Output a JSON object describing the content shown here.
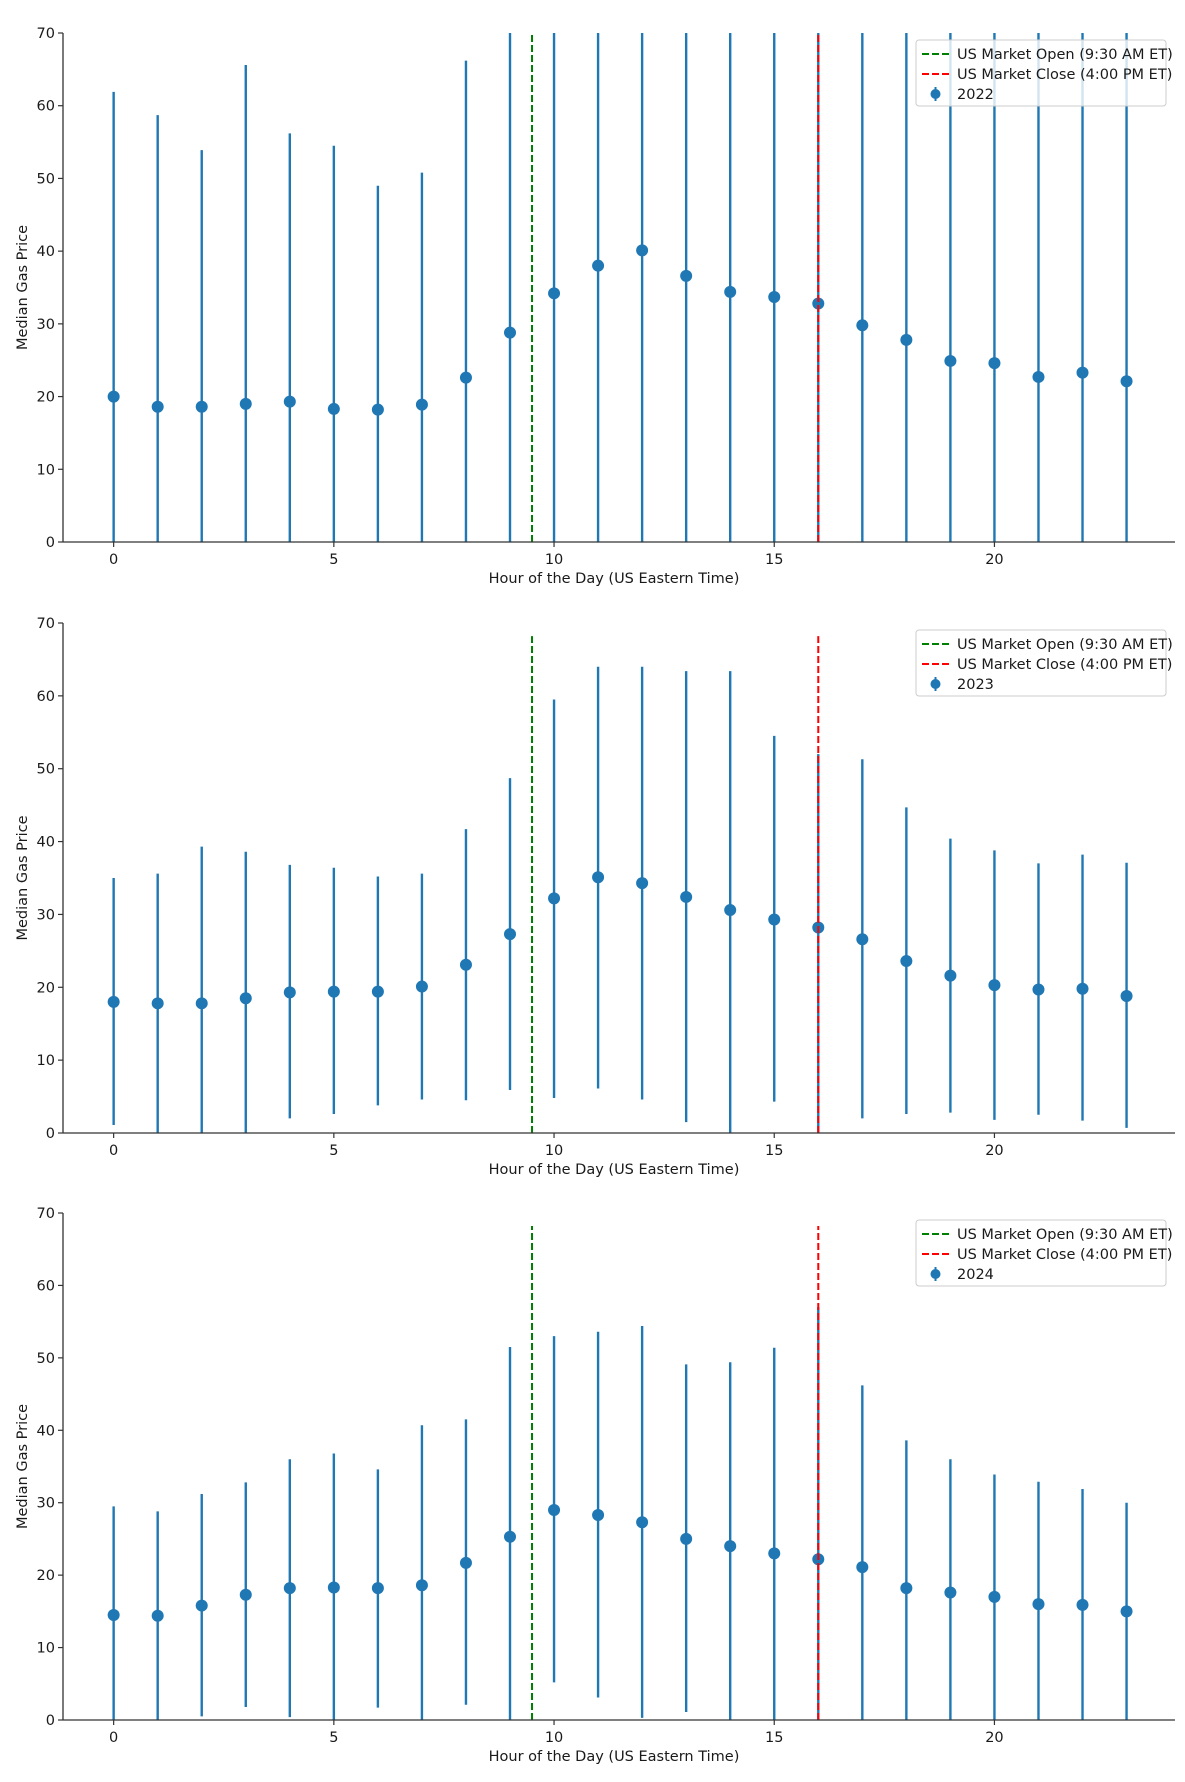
{
  "chart_data": [
    {
      "type": "scatter",
      "subtype": "errorbar",
      "title": "",
      "xlabel": "Hour of the Day (US Eastern Time)",
      "ylabel": "Median Gas Price",
      "xlim": [
        -1.15,
        24.1
      ],
      "ylim": [
        0,
        70
      ],
      "xticks": [
        0,
        5,
        10,
        15,
        20
      ],
      "yticks": [
        0,
        10,
        20,
        30,
        40,
        50,
        60,
        70
      ],
      "grid": false,
      "legend_position": "top-right",
      "series": [
        {
          "name": "2022",
          "color": "#1f77b4",
          "x": [
            0,
            1,
            2,
            3,
            4,
            5,
            6,
            7,
            8,
            9,
            10,
            11,
            12,
            13,
            14,
            15,
            16,
            17,
            18,
            19,
            20,
            21,
            22,
            23
          ],
          "y": [
            20.0,
            18.6,
            18.6,
            19.0,
            19.3,
            18.3,
            18.2,
            18.9,
            22.6,
            28.8,
            34.2,
            38.0,
            40.1,
            36.6,
            34.4,
            33.7,
            32.8,
            29.8,
            27.8,
            24.9,
            24.6,
            22.7,
            23.3,
            22.1
          ],
          "y_low": [
            0,
            0,
            0,
            0,
            0,
            0,
            0,
            0,
            0,
            0,
            0,
            0,
            0,
            0,
            0,
            0,
            0,
            0,
            0,
            0,
            0,
            0,
            0,
            0
          ],
          "y_high": [
            61.9,
            58.7,
            53.9,
            65.6,
            56.2,
            54.5,
            49.0,
            50.8,
            66.2,
            70,
            70,
            70,
            70,
            70,
            70,
            70,
            70,
            70,
            70,
            70,
            70,
            70,
            70,
            70
          ]
        }
      ],
      "vlines": [
        {
          "name": "US Market Open (9:30 AM ET)",
          "x": 9.5,
          "color": "#008000",
          "style": "dashed",
          "y_range": [
            0,
            70
          ]
        },
        {
          "name": "US Market Close (4:00 PM ET)",
          "x": 16,
          "color": "#ff0000",
          "style": "dashed",
          "y_range": [
            0,
            70
          ]
        }
      ],
      "legend": [
        "US Market Open (9:30 AM ET)",
        "US Market Close (4:00 PM ET)",
        "2022"
      ]
    },
    {
      "type": "scatter",
      "subtype": "errorbar",
      "title": "",
      "xlabel": "Hour of the Day (US Eastern Time)",
      "ylabel": "Median Gas Price",
      "xlim": [
        -1.15,
        24.1
      ],
      "ylim": [
        0,
        70
      ],
      "xticks": [
        0,
        5,
        10,
        15,
        20
      ],
      "yticks": [
        0,
        10,
        20,
        30,
        40,
        50,
        60,
        70
      ],
      "grid": false,
      "legend_position": "top-right",
      "series": [
        {
          "name": "2023",
          "color": "#1f77b4",
          "x": [
            0,
            1,
            2,
            3,
            4,
            5,
            6,
            7,
            8,
            9,
            10,
            11,
            12,
            13,
            14,
            15,
            16,
            17,
            18,
            19,
            20,
            21,
            22,
            23
          ],
          "y": [
            18.0,
            17.8,
            17.8,
            18.5,
            19.3,
            19.4,
            19.4,
            20.1,
            23.1,
            27.3,
            32.2,
            35.1,
            34.3,
            32.4,
            30.6,
            29.3,
            28.2,
            26.6,
            23.6,
            21.6,
            20.3,
            19.7,
            19.8,
            18.8
          ],
          "y_low": [
            1.1,
            0,
            0,
            0,
            2.0,
            2.6,
            3.8,
            4.6,
            4.5,
            5.9,
            4.8,
            6.1,
            4.6,
            1.5,
            0,
            4.3,
            0,
            2.0,
            2.6,
            2.8,
            1.8,
            2.5,
            1.7,
            0.7
          ],
          "y_high": [
            35.0,
            35.6,
            39.3,
            38.6,
            36.8,
            36.4,
            35.2,
            35.6,
            41.7,
            48.7,
            59.5,
            64.0,
            64.0,
            63.4,
            63.4,
            54.5,
            52.0,
            51.3,
            44.7,
            40.4,
            38.8,
            37.0,
            38.2,
            37.1
          ]
        }
      ],
      "vlines": [
        {
          "name": "US Market Open (9:30 AM ET)",
          "x": 9.5,
          "color": "#008000",
          "style": "dashed",
          "y_range": [
            0,
            68.2
          ]
        },
        {
          "name": "US Market Close (4:00 PM ET)",
          "x": 16,
          "color": "#ff0000",
          "style": "dashed",
          "y_range": [
            0,
            68.2
          ]
        }
      ],
      "legend": [
        "US Market Open (9:30 AM ET)",
        "US Market Close (4:00 PM ET)",
        "2023"
      ]
    },
    {
      "type": "scatter",
      "subtype": "errorbar",
      "title": "",
      "xlabel": "Hour of the Day (US Eastern Time)",
      "ylabel": "Median Gas Price",
      "xlim": [
        -1.15,
        24.1
      ],
      "ylim": [
        0,
        70
      ],
      "xticks": [
        0,
        5,
        10,
        15,
        20
      ],
      "yticks": [
        0,
        10,
        20,
        30,
        40,
        50,
        60,
        70
      ],
      "grid": false,
      "legend_position": "top-right",
      "series": [
        {
          "name": "2024",
          "color": "#1f77b4",
          "x": [
            0,
            1,
            2,
            3,
            4,
            5,
            6,
            7,
            8,
            9,
            10,
            11,
            12,
            13,
            14,
            15,
            16,
            17,
            18,
            19,
            20,
            21,
            22,
            23
          ],
          "y": [
            14.5,
            14.4,
            15.8,
            17.3,
            18.2,
            18.3,
            18.2,
            18.6,
            21.7,
            25.3,
            29.0,
            28.3,
            27.3,
            25.0,
            24.0,
            23.0,
            22.2,
            21.1,
            18.2,
            17.6,
            17.0,
            16.0,
            15.9,
            15.0
          ],
          "y_low": [
            0,
            0,
            0.5,
            1.8,
            0.4,
            0,
            1.7,
            0,
            2.1,
            0,
            5.2,
            3.1,
            0.3,
            1.1,
            0,
            0,
            0,
            0,
            0,
            0,
            0,
            0,
            0,
            0
          ],
          "y_high": [
            29.5,
            28.8,
            31.2,
            32.8,
            36.0,
            36.8,
            34.6,
            40.7,
            41.5,
            51.5,
            53.0,
            53.6,
            54.4,
            49.1,
            49.4,
            51.4,
            57.0,
            46.2,
            38.6,
            36.0,
            33.9,
            32.9,
            31.9,
            30.0
          ]
        }
      ],
      "vlines": [
        {
          "name": "US Market Open (9:30 AM ET)",
          "x": 9.5,
          "color": "#008000",
          "style": "dashed",
          "y_range": [
            0,
            68.2
          ]
        },
        {
          "name": "US Market Close (4:00 PM ET)",
          "x": 16,
          "color": "#ff0000",
          "style": "dashed",
          "y_range": [
            0,
            68.2
          ]
        }
      ],
      "legend": [
        "US Market Open (9:30 AM ET)",
        "US Market Close (4:00 PM ET)",
        "2024"
      ]
    }
  ]
}
